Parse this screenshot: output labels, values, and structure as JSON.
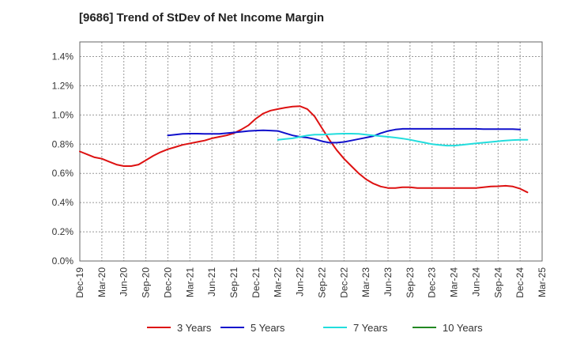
{
  "chart_data": {
    "type": "line",
    "title": "[9686]  Trend of StDev of Net Income Margin",
    "xlabel": "",
    "ylabel": "",
    "x_ticks": [
      "Dec-19",
      "Mar-20",
      "Jun-20",
      "Sep-20",
      "Dec-20",
      "Mar-21",
      "Jun-21",
      "Sep-21",
      "Dec-21",
      "Mar-22",
      "Jun-22",
      "Sep-22",
      "Dec-22",
      "Mar-23",
      "Jun-23",
      "Sep-23",
      "Dec-23",
      "Mar-24",
      "Jun-24",
      "Sep-24",
      "Dec-24",
      "Mar-25"
    ],
    "y_ticks": [
      "0.0%",
      "0.2%",
      "0.4%",
      "0.6%",
      "0.8%",
      "1.0%",
      "1.2%",
      "1.4%"
    ],
    "ylim": [
      0,
      1.5
    ],
    "grid": true,
    "legend_position": "bottom",
    "series": [
      {
        "name": "3 Years",
        "color": "#dd1111",
        "points": [
          [
            "Dec-19",
            0.75
          ],
          [
            "Jan-20",
            0.73
          ],
          [
            "Feb-20",
            0.71
          ],
          [
            "Mar-20",
            0.7
          ],
          [
            "Apr-20",
            0.68
          ],
          [
            "May-20",
            0.66
          ],
          [
            "Jun-20",
            0.65
          ],
          [
            "Jul-20",
            0.65
          ],
          [
            "Aug-20",
            0.66
          ],
          [
            "Sep-20",
            0.69
          ],
          [
            "Oct-20",
            0.72
          ],
          [
            "Nov-20",
            0.745
          ],
          [
            "Dec-20",
            0.765
          ],
          [
            "Jan-21",
            0.78
          ],
          [
            "Feb-21",
            0.795
          ],
          [
            "Mar-21",
            0.805
          ],
          [
            "Apr-21",
            0.815
          ],
          [
            "May-21",
            0.825
          ],
          [
            "Jun-21",
            0.84
          ],
          [
            "Jul-21",
            0.85
          ],
          [
            "Aug-21",
            0.86
          ],
          [
            "Sep-21",
            0.875
          ],
          [
            "Oct-21",
            0.9
          ],
          [
            "Nov-21",
            0.93
          ],
          [
            "Dec-21",
            0.975
          ],
          [
            "Jan-22",
            1.01
          ],
          [
            "Feb-22",
            1.03
          ],
          [
            "Mar-22",
            1.04
          ],
          [
            "Apr-22",
            1.05
          ],
          [
            "May-22",
            1.057
          ],
          [
            "Jun-22",
            1.06
          ],
          [
            "Jul-22",
            1.04
          ],
          [
            "Aug-22",
            0.99
          ],
          [
            "Sep-22",
            0.91
          ],
          [
            "Oct-22",
            0.83
          ],
          [
            "Nov-22",
            0.76
          ],
          [
            "Dec-22",
            0.7
          ],
          [
            "Jan-23",
            0.65
          ],
          [
            "Feb-23",
            0.6
          ],
          [
            "Mar-23",
            0.56
          ],
          [
            "Apr-23",
            0.53
          ],
          [
            "May-23",
            0.51
          ],
          [
            "Jun-23",
            0.5
          ],
          [
            "Jul-23",
            0.5
          ],
          [
            "Aug-23",
            0.505
          ],
          [
            "Sep-23",
            0.505
          ],
          [
            "Oct-23",
            0.5
          ],
          [
            "Nov-23",
            0.5
          ],
          [
            "Dec-23",
            0.5
          ],
          [
            "Jan-24",
            0.5
          ],
          [
            "Feb-24",
            0.5
          ],
          [
            "Mar-24",
            0.5
          ],
          [
            "Apr-24",
            0.5
          ],
          [
            "May-24",
            0.5
          ],
          [
            "Jun-24",
            0.5
          ],
          [
            "Jul-24",
            0.505
          ],
          [
            "Aug-24",
            0.51
          ],
          [
            "Sep-24",
            0.512
          ],
          [
            "Oct-24",
            0.515
          ],
          [
            "Nov-24",
            0.51
          ],
          [
            "Dec-24",
            0.495
          ],
          [
            "Jan-25",
            0.47
          ]
        ]
      },
      {
        "name": "5 Years",
        "color": "#1111cc",
        "points": [
          [
            "Dec-20",
            0.86
          ],
          [
            "Jan-21",
            0.865
          ],
          [
            "Feb-21",
            0.87
          ],
          [
            "Mar-21",
            0.872
          ],
          [
            "Apr-21",
            0.872
          ],
          [
            "May-21",
            0.87
          ],
          [
            "Jun-21",
            0.87
          ],
          [
            "Jul-21",
            0.87
          ],
          [
            "Aug-21",
            0.875
          ],
          [
            "Sep-21",
            0.88
          ],
          [
            "Oct-21",
            0.885
          ],
          [
            "Nov-21",
            0.89
          ],
          [
            "Dec-21",
            0.893
          ],
          [
            "Jan-22",
            0.895
          ],
          [
            "Feb-22",
            0.893
          ],
          [
            "Mar-22",
            0.89
          ],
          [
            "Apr-22",
            0.875
          ],
          [
            "May-22",
            0.86
          ],
          [
            "Jun-22",
            0.85
          ],
          [
            "Jul-22",
            0.845
          ],
          [
            "Aug-22",
            0.835
          ],
          [
            "Sep-22",
            0.82
          ],
          [
            "Oct-22",
            0.81
          ],
          [
            "Nov-22",
            0.81
          ],
          [
            "Dec-22",
            0.815
          ],
          [
            "Jan-23",
            0.825
          ],
          [
            "Feb-23",
            0.835
          ],
          [
            "Mar-23",
            0.845
          ],
          [
            "Apr-23",
            0.855
          ],
          [
            "May-23",
            0.875
          ],
          [
            "Jun-23",
            0.89
          ],
          [
            "Jul-23",
            0.9
          ],
          [
            "Aug-23",
            0.905
          ],
          [
            "Sep-23",
            0.905
          ],
          [
            "Oct-23",
            0.905
          ],
          [
            "Nov-23",
            0.905
          ],
          [
            "Dec-23",
            0.905
          ],
          [
            "Jan-24",
            0.905
          ],
          [
            "Feb-24",
            0.905
          ],
          [
            "Mar-24",
            0.905
          ],
          [
            "Apr-24",
            0.905
          ],
          [
            "May-24",
            0.905
          ],
          [
            "Jun-24",
            0.905
          ],
          [
            "Jul-24",
            0.903
          ],
          [
            "Aug-24",
            0.903
          ],
          [
            "Sep-24",
            0.903
          ],
          [
            "Oct-24",
            0.903
          ],
          [
            "Nov-24",
            0.903
          ],
          [
            "Dec-24",
            0.9
          ]
        ]
      },
      {
        "name": "7 Years",
        "color": "#22dddd",
        "points": [
          [
            "Mar-22",
            0.83
          ],
          [
            "Apr-22",
            0.835
          ],
          [
            "May-22",
            0.84
          ],
          [
            "Jun-22",
            0.85
          ],
          [
            "Jul-22",
            0.86
          ],
          [
            "Aug-22",
            0.865
          ],
          [
            "Sep-22",
            0.865
          ],
          [
            "Oct-22",
            0.868
          ],
          [
            "Nov-22",
            0.87
          ],
          [
            "Dec-22",
            0.872
          ],
          [
            "Jan-23",
            0.872
          ],
          [
            "Feb-23",
            0.87
          ],
          [
            "Mar-23",
            0.865
          ],
          [
            "Apr-23",
            0.86
          ],
          [
            "May-23",
            0.855
          ],
          [
            "Jun-23",
            0.85
          ],
          [
            "Jul-23",
            0.845
          ],
          [
            "Aug-23",
            0.838
          ],
          [
            "Sep-23",
            0.83
          ],
          [
            "Oct-23",
            0.82
          ],
          [
            "Nov-23",
            0.81
          ],
          [
            "Dec-23",
            0.8
          ],
          [
            "Jan-24",
            0.795
          ],
          [
            "Feb-24",
            0.79
          ],
          [
            "Mar-24",
            0.79
          ],
          [
            "Apr-24",
            0.795
          ],
          [
            "May-24",
            0.8
          ],
          [
            "Jun-24",
            0.805
          ],
          [
            "Jul-24",
            0.81
          ],
          [
            "Aug-24",
            0.815
          ],
          [
            "Sep-24",
            0.82
          ],
          [
            "Oct-24",
            0.825
          ],
          [
            "Nov-24",
            0.828
          ],
          [
            "Dec-24",
            0.83
          ],
          [
            "Jan-25",
            0.83
          ]
        ]
      },
      {
        "name": "10 Years",
        "color": "#228822",
        "points": []
      }
    ]
  }
}
